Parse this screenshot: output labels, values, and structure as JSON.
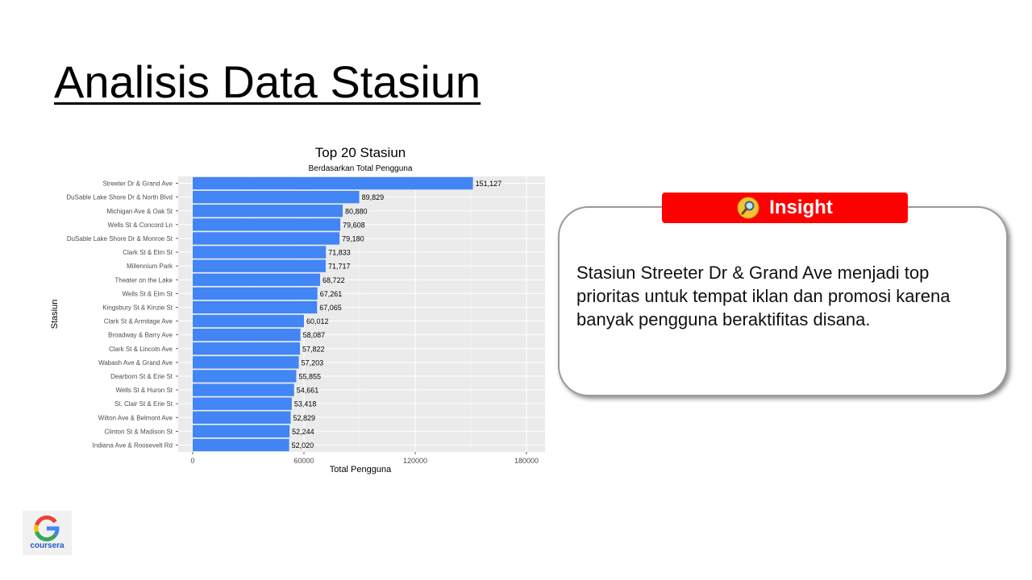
{
  "slide": {
    "title": "Analisis Data Stasiun"
  },
  "insight": {
    "label": "Insight",
    "icon": "magnifier-icon",
    "text": "Stasiun Streeter Dr & Grand Ave menjadi top prioritas untuk tempat iklan dan promosi karena banyak pengguna beraktifitas disana.",
    "badge_color": "#ff0000"
  },
  "logo": {
    "icon": "google-g-icon",
    "text": "coursera"
  },
  "chart_data": {
    "type": "bar",
    "orientation": "horizontal",
    "title": "Top 20 Stasiun",
    "subtitle": "Berdasarkan Total Pengguna",
    "xlabel": "Total Pengguna",
    "ylabel": "Stasiun",
    "xlim": [
      0,
      190000
    ],
    "xticks": [
      0,
      60000,
      120000,
      180000
    ],
    "grid": true,
    "bar_color": "#4285f4",
    "panel_color": "#ebebeb",
    "categories": [
      "Streeter Dr & Grand Ave",
      "DuSable Lake Shore Dr & North Blvd",
      "Michigan Ave & Oak St",
      "Wells St & Concord Ln",
      "DuSable Lake Shore Dr & Monroe St",
      "Clark St & Elm St",
      "Millennium Park",
      "Theater on the Lake",
      "Wells St & Elm St",
      "Kingsbury St & Kinzie St",
      "Clark St & Armitage Ave",
      "Broadway & Barry Ave",
      "Clark St & Lincoln Ave",
      "Wabash Ave & Grand Ave",
      "Dearborn St & Erie St",
      "Wells St & Huron St",
      "St. Clair St & Erie St",
      "Wilton Ave & Belmont Ave",
      "Clinton St & Madison St",
      "Indiana Ave & Roosevelt Rd"
    ],
    "values": [
      151127,
      89829,
      80880,
      79608,
      79180,
      71833,
      71717,
      68722,
      67261,
      67065,
      60012,
      58087,
      57822,
      57203,
      55855,
      54661,
      53418,
      52829,
      52244,
      52020
    ],
    "value_labels": [
      "151,127",
      "89,829",
      "80,880",
      "79,608",
      "79,180",
      "71,833",
      "71,717",
      "68,722",
      "67,261",
      "67,065",
      "60,012",
      "58,087",
      "57,822",
      "57,203",
      "55,855",
      "54,661",
      "53,418",
      "52,829",
      "52,244",
      "52,020"
    ]
  }
}
